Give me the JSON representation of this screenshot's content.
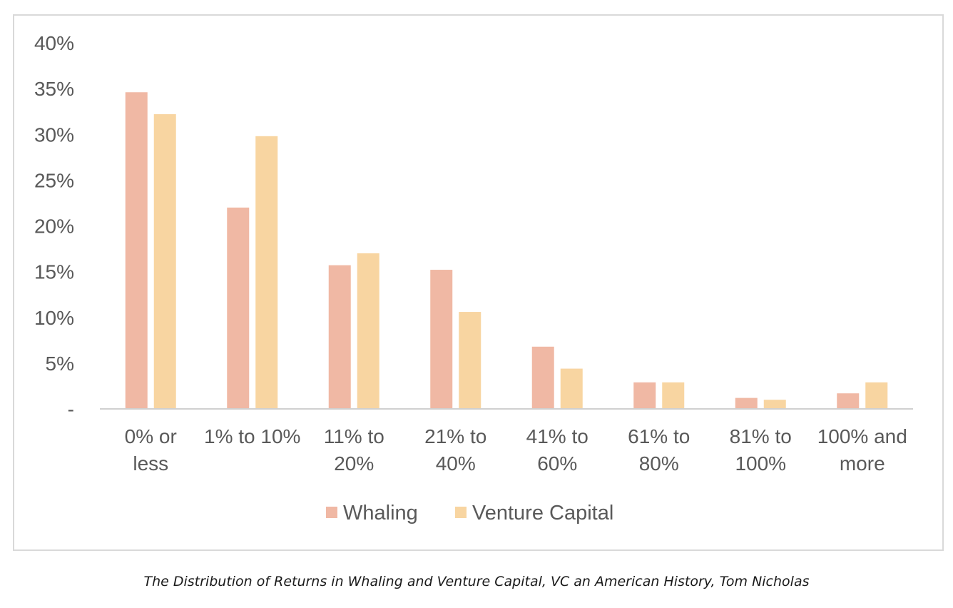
{
  "chart_data": {
    "type": "bar",
    "categories": [
      [
        "0% or",
        "less"
      ],
      [
        "1% to 10%"
      ],
      [
        "11% to",
        "20%"
      ],
      [
        "21% to",
        "40%"
      ],
      [
        "41% to",
        "60%"
      ],
      [
        "61% to",
        "80%"
      ],
      [
        "81% to",
        "100%"
      ],
      [
        "100% and",
        "more"
      ]
    ],
    "series": [
      {
        "name": "Whaling",
        "color": "#f0b8a4",
        "values": [
          34.6,
          22.0,
          15.7,
          15.2,
          6.8,
          2.9,
          1.2,
          1.7
        ]
      },
      {
        "name": "Venture Capital",
        "color": "#f8d5a1",
        "values": [
          32.2,
          29.8,
          17.0,
          10.6,
          4.4,
          2.9,
          1.0,
          2.9
        ]
      }
    ],
    "y_ticks": [
      "-",
      "5%",
      "10%",
      "15%",
      "20%",
      "25%",
      "30%",
      "35%",
      "40%"
    ],
    "ylim": [
      0,
      40
    ],
    "y_step": 5,
    "grid": false,
    "legend_position": "bottom"
  },
  "caption": "The Distribution of Returns in Whaling and Venture Capital, VC an American History, Tom Nicholas"
}
